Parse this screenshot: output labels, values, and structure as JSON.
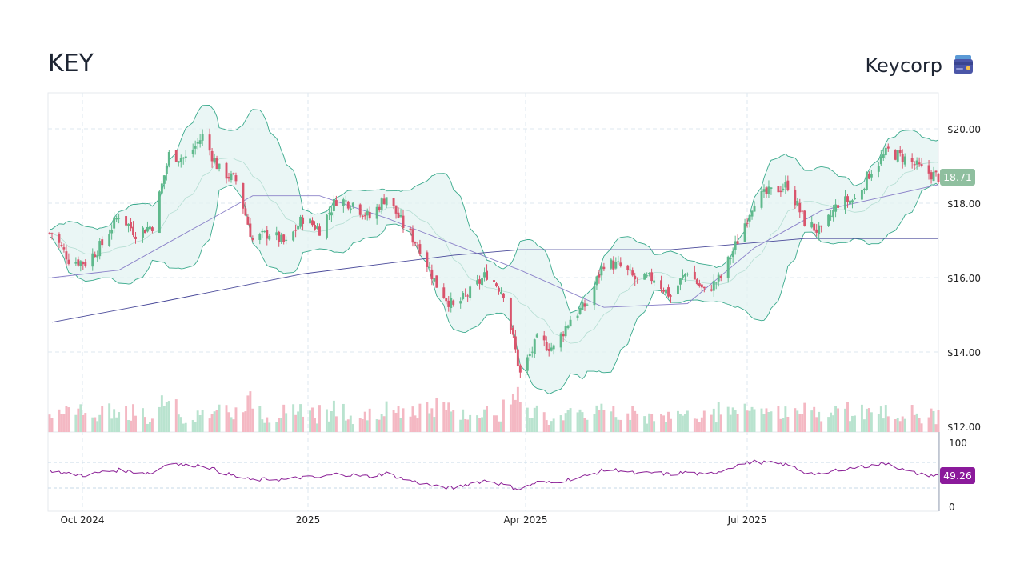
{
  "header": {
    "ticker": "KEY",
    "company": "Keycorp",
    "company_icon": "bank-card-icon"
  },
  "colors": {
    "up": "#5fb98c",
    "down": "#d9546c",
    "band_line": "#3aaa8c",
    "band_fill": "#e3f3f1",
    "sma_short": "#8b82c9",
    "sma_long": "#4a4a9a",
    "rsi": "#8b1f96",
    "last_price_badge": "#8fbf9f",
    "rsi_badge": "#8b1a9b"
  },
  "chart_data": {
    "type": "candlestick",
    "title": "",
    "x_tick_labels": [
      "Oct 2024",
      "2025",
      "Apr 2025",
      "Jul 2025"
    ],
    "y_tick_labels": [
      "$20.00",
      "$18.00",
      "$16.00",
      "$14.00",
      "$12.00"
    ],
    "ylim": [
      12.0,
      20.9
    ],
    "last_price_label": "18.71",
    "grid": true,
    "indicators": [
      "Bollinger Bands (20, 2)",
      "SMA 50",
      "SMA 200",
      "Volume",
      "RSI 14"
    ],
    "close_series": {
      "weeks": [
        "2024-09-20",
        "2024-09-27",
        "2024-10-04",
        "2024-10-11",
        "2024-10-18",
        "2024-10-25",
        "2024-11-01",
        "2024-11-08",
        "2024-11-15",
        "2024-11-22",
        "2024-11-29",
        "2024-12-06",
        "2024-12-13",
        "2024-12-20",
        "2024-12-27",
        "2025-01-03",
        "2025-01-10",
        "2025-01-17",
        "2025-01-24",
        "2025-01-31",
        "2025-02-07",
        "2025-02-14",
        "2025-02-21",
        "2025-02-28",
        "2025-03-07",
        "2025-03-14",
        "2025-03-21",
        "2025-03-28",
        "2025-04-04",
        "2025-04-11",
        "2025-04-18",
        "2025-04-25",
        "2025-05-02",
        "2025-05-09",
        "2025-05-16",
        "2025-05-23",
        "2025-05-30",
        "2025-06-06",
        "2025-06-13",
        "2025-06-20",
        "2025-06-27",
        "2025-07-04",
        "2025-07-11",
        "2025-07-18",
        "2025-07-25",
        "2025-08-01",
        "2025-08-08",
        "2025-08-15",
        "2025-08-22",
        "2025-08-29",
        "2025-09-05",
        "2025-09-12",
        "2025-09-19",
        "2025-09-26"
      ],
      "close": [
        17.2,
        16.5,
        16.4,
        16.9,
        17.7,
        17.2,
        17.4,
        19.3,
        19.2,
        19.8,
        18.9,
        18.6,
        17.0,
        17.2,
        16.9,
        17.6,
        17.3,
        18.1,
        18.0,
        17.6,
        18.2,
        17.4,
        16.8,
        15.8,
        15.2,
        15.6,
        16.1,
        15.6,
        13.4,
        14.3,
        14.1,
        14.9,
        15.3,
        16.4,
        16.3,
        15.9,
        16.0,
        15.5,
        16.2,
        15.6,
        16.0,
        17.0,
        18.1,
        18.3,
        18.5,
        17.5,
        17.2,
        18.0,
        18.1,
        18.9,
        19.4,
        19.2,
        18.9,
        18.7
      ]
    },
    "sma_long": {
      "weeks": [
        "2024-09-20",
        "2024-11-01",
        "2025-01-03",
        "2025-03-07",
        "2025-04-04",
        "2025-05-02",
        "2025-06-06",
        "2025-07-04",
        "2025-08-01",
        "2025-09-26"
      ],
      "values": [
        14.8,
        15.3,
        16.1,
        16.6,
        16.75,
        16.75,
        16.75,
        16.9,
        17.05,
        17.05
      ]
    },
    "sma_short": {
      "weeks": [
        "2024-09-20",
        "2024-10-18",
        "2024-11-15",
        "2024-12-13",
        "2025-01-10",
        "2025-02-07",
        "2025-03-07",
        "2025-04-04",
        "2025-05-09",
        "2025-06-13",
        "2025-07-11",
        "2025-08-08",
        "2025-09-26"
      ],
      "values": [
        16.0,
        16.2,
        17.2,
        18.2,
        18.2,
        17.6,
        16.9,
        16.2,
        15.2,
        15.3,
        16.8,
        17.8,
        18.5
      ]
    },
    "rsi": {
      "axis_labels": [
        "100",
        "0"
      ],
      "ylim": [
        0,
        100
      ],
      "reference_lines": [
        70,
        30
      ],
      "last_value_label": "49.26",
      "values": [
        57,
        52,
        50,
        55,
        58,
        55,
        53,
        70,
        65,
        66,
        56,
        48,
        42,
        44,
        43,
        47,
        46,
        52,
        50,
        48,
        53,
        44,
        38,
        32,
        30,
        37,
        42,
        35,
        28,
        39,
        38,
        44,
        49,
        58,
        58,
        52,
        54,
        51,
        55,
        50,
        57,
        66,
        71,
        69,
        66,
        55,
        50,
        59,
        62,
        65,
        69,
        57,
        51,
        49
      ]
    }
  }
}
